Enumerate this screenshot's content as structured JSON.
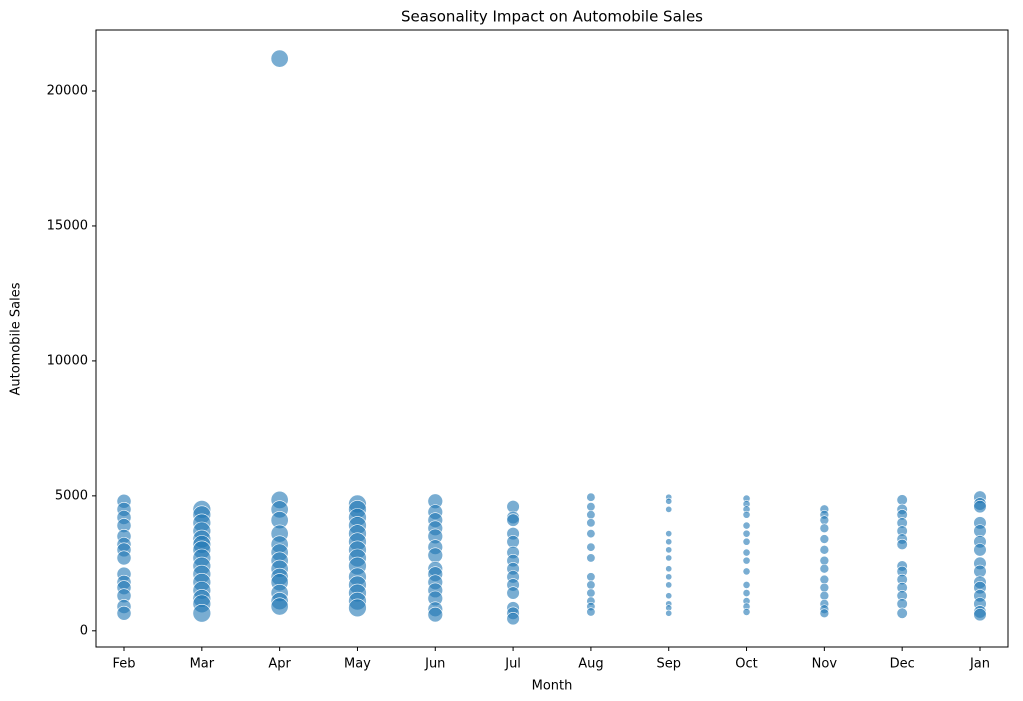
{
  "chart_data": {
    "type": "scatter",
    "title": "Seasonality Impact on Automobile Sales",
    "xlabel": "Month",
    "ylabel": "Automobile Sales",
    "categories": [
      "Feb",
      "Mar",
      "Apr",
      "May",
      "Jun",
      "Jul",
      "Aug",
      "Sep",
      "Oct",
      "Nov",
      "Dec",
      "Jan"
    ],
    "values": [
      [
        4800,
        4500,
        4200,
        3900,
        3500,
        3200,
        3000,
        2700,
        2100,
        1800,
        1600,
        1300,
        900,
        650
      ],
      [
        4500,
        4300,
        4000,
        3700,
        3400,
        3200,
        3000,
        2700,
        2400,
        2100,
        1800,
        1500,
        1200,
        1000,
        650
      ],
      [
        21200,
        4850,
        4500,
        4100,
        3600,
        3200,
        2900,
        2600,
        2300,
        2000,
        1800,
        1400,
        1100,
        900
      ],
      [
        4700,
        4500,
        4200,
        3900,
        3600,
        3300,
        3000,
        2700,
        2400,
        2000,
        1700,
        1400,
        1100,
        850
      ],
      [
        4800,
        4400,
        4100,
        3800,
        3500,
        3100,
        2800,
        2300,
        2100,
        1800,
        1500,
        1200,
        800,
        600
      ],
      [
        4600,
        4200,
        4100,
        3600,
        3300,
        2900,
        2600,
        2300,
        2000,
        1700,
        1400,
        850,
        650,
        450
      ],
      [
        4950,
        4600,
        4300,
        4000,
        3600,
        3100,
        2700,
        2000,
        1700,
        1400,
        1100,
        900,
        700
      ],
      [
        4950,
        4800,
        4500,
        3600,
        3300,
        3000,
        2700,
        2300,
        2000,
        1700,
        1300,
        1000,
        850,
        650
      ],
      [
        4900,
        4700,
        4500,
        4300,
        3900,
        3600,
        3300,
        2900,
        2600,
        2200,
        1700,
        1400,
        1100,
        900,
        700
      ],
      [
        4500,
        4300,
        4100,
        3800,
        3400,
        3000,
        2600,
        2300,
        1900,
        1600,
        1300,
        1000,
        800,
        650
      ],
      [
        4850,
        4500,
        4300,
        4000,
        3700,
        3400,
        3200,
        2400,
        2200,
        1900,
        1600,
        1300,
        1000,
        650
      ],
      [
        4950,
        4700,
        4600,
        4000,
        3700,
        3300,
        3000,
        2500,
        2200,
        1800,
        1600,
        1300,
        1000,
        700,
        600
      ]
    ],
    "sizes": [
      50,
      80,
      75,
      80,
      55,
      40,
      18,
      10,
      13,
      20,
      28,
      40
    ],
    "color": "#1f77b4",
    "ylim": [
      -600,
      22260
    ],
    "yticks": [
      0,
      5000,
      10000,
      15000,
      20000
    ],
    "grid": false
  }
}
